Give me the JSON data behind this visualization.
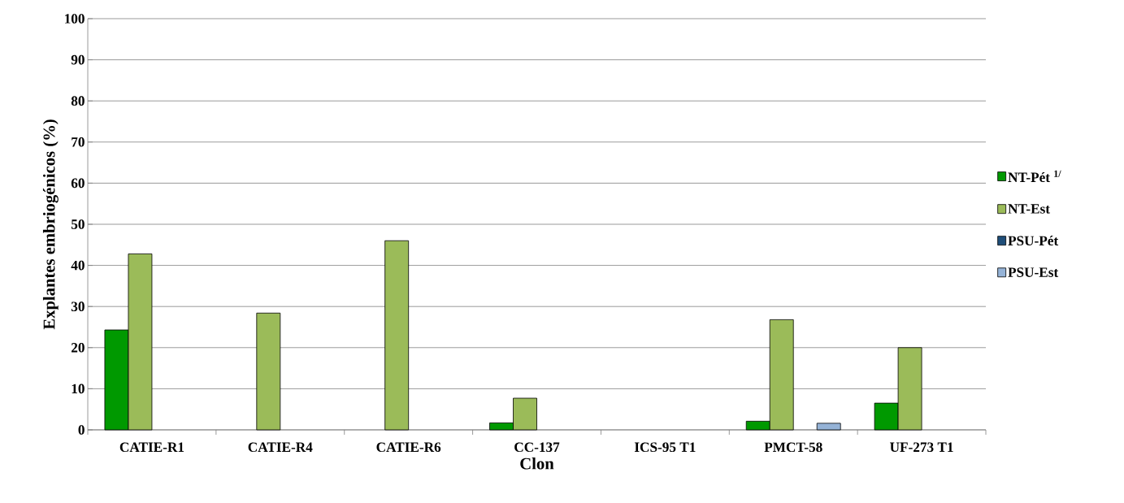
{
  "chart_data": {
    "type": "bar",
    "xlabel": "Clon",
    "ylabel": "Explantes embriogénicos (%)",
    "categories": [
      "CATIE-R1",
      "CATIE-R4",
      "CATIE-R6",
      "CC-137",
      "ICS-95 T1",
      "PMCT-58",
      "UF-273 T1"
    ],
    "series": [
      {
        "name": "NT-Pét $^{1/}$",
        "color": "#009900",
        "values": [
          24.3,
          0,
          0,
          1.7,
          0,
          2.1,
          6.5
        ]
      },
      {
        "name": "NT-Est",
        "color": "#9bbb59",
        "values": [
          42.8,
          28.4,
          46.0,
          7.7,
          0,
          26.8,
          20.0
        ]
      },
      {
        "name": "PSU-Pét",
        "color": "#1f4e79",
        "values": [
          0,
          0,
          0,
          0,
          0,
          0,
          0
        ]
      },
      {
        "name": "PSU-Est",
        "color": "#95b3d7",
        "values": [
          0,
          0,
          0,
          0,
          0,
          1.6,
          0
        ]
      }
    ],
    "ylim": [
      0,
      100
    ],
    "yticks": [
      0,
      10,
      20,
      30,
      40,
      50,
      60,
      70,
      80,
      90,
      100
    ],
    "grid": "y",
    "legend": "right"
  }
}
